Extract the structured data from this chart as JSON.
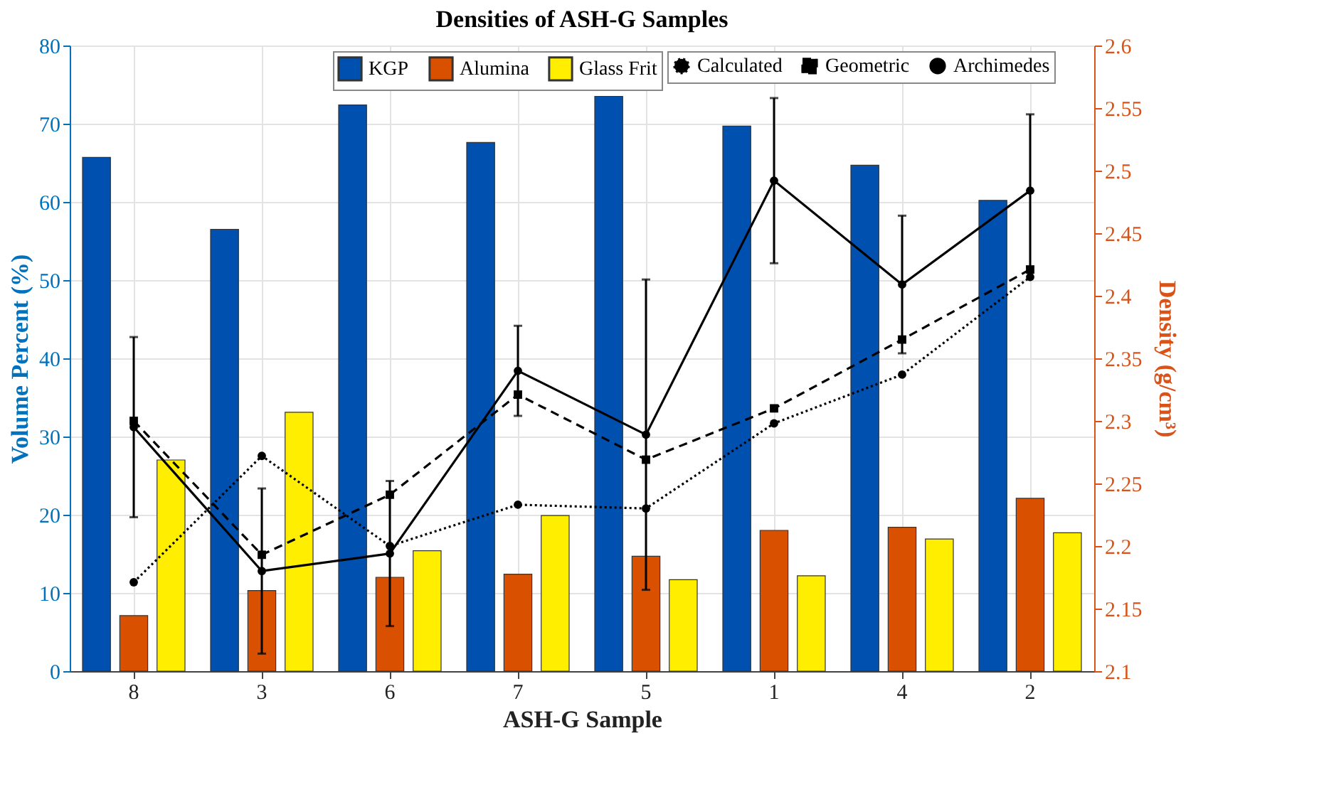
{
  "chart_data": {
    "type": "bar",
    "title": "Densities of ASH-G Samples",
    "xlabel": "ASH-G Sample",
    "ylabel": "Volume Percent (%)",
    "y2label": "Density (g/cm³)",
    "categories": [
      "8",
      "3",
      "6",
      "7",
      "5",
      "1",
      "4",
      "2"
    ],
    "series": [
      {
        "name": "KGP",
        "color": "#0050b0",
        "values": [
          65.7,
          56.5,
          72.4,
          67.6,
          73.5,
          69.7,
          64.7,
          60.2
        ]
      },
      {
        "name": "Alumina",
        "color": "#d95000",
        "values": [
          7.1,
          10.3,
          12.0,
          12.4,
          14.7,
          18.0,
          18.4,
          22.1
        ]
      },
      {
        "name": "Glass Frit",
        "color": "#ffee00",
        "values": [
          27.0,
          33.1,
          15.4,
          19.9,
          11.7,
          12.2,
          16.9,
          17.7
        ]
      },
      {
        "name": "Calculated",
        "type": "line",
        "axis": "y2",
        "color": "#000000",
        "line_style": "dotted",
        "marker": "circle",
        "values": [
          2.171,
          2.272,
          2.2,
          2.233,
          2.23,
          2.298,
          2.337,
          2.415
        ]
      },
      {
        "name": "Geometric",
        "type": "line",
        "axis": "y2",
        "color": "#000000",
        "line_style": "dashed",
        "marker": "square",
        "values": [
          2.3,
          2.193,
          2.241,
          2.321,
          2.269,
          2.31,
          2.365,
          2.421
        ]
      },
      {
        "name": "Archimedes",
        "type": "line",
        "axis": "y2",
        "color": "#000000",
        "line_style": "solid",
        "marker": "circle",
        "values": [
          2.295,
          2.18,
          2.194,
          2.34,
          2.289,
          2.492,
          2.409,
          2.484
        ],
        "errors": [
          0.072,
          0.066,
          0.058,
          0.036,
          0.124,
          0.066,
          0.055,
          0.061
        ]
      }
    ],
    "ylim": [
      0,
      80
    ],
    "yticks": [
      0,
      10,
      20,
      30,
      40,
      50,
      60,
      70,
      80
    ],
    "y2lim": [
      2.1,
      2.6
    ],
    "y2ticks": [
      2.1,
      2.15,
      2.2,
      2.25,
      2.3,
      2.35,
      2.4,
      2.45,
      2.5,
      2.55,
      2.6
    ],
    "grid": true,
    "legend": "top right"
  }
}
